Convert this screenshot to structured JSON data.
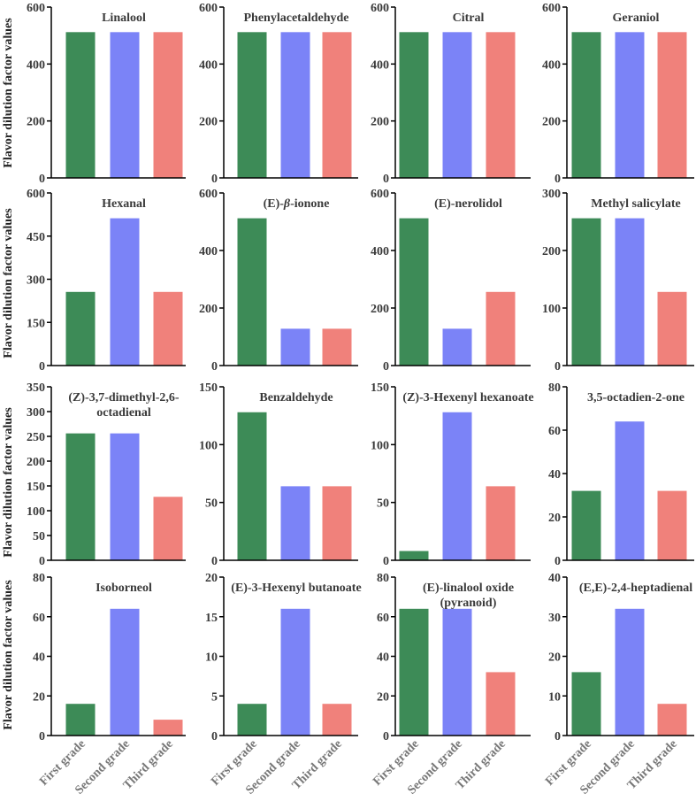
{
  "figure": {
    "ylabel": "Flavor dilution factor values",
    "categories": [
      "First grade",
      "Second grade",
      "Third grade"
    ],
    "colors": [
      "#3d8b57",
      "#7b83f7",
      "#f0817b"
    ]
  },
  "chart_data": [
    {
      "type": "bar",
      "title": "Linalool",
      "title_lines": [
        "Linalool"
      ],
      "categories": [
        "First grade",
        "Second grade",
        "Third grade"
      ],
      "values": [
        512,
        512,
        512
      ],
      "ylim": [
        0,
        600
      ],
      "yticks": [
        0,
        200,
        400,
        600
      ]
    },
    {
      "type": "bar",
      "title": "Phenylacetaldehyde",
      "title_lines": [
        "Phenylacetaldehyde"
      ],
      "categories": [
        "First grade",
        "Second grade",
        "Third grade"
      ],
      "values": [
        512,
        512,
        512
      ],
      "ylim": [
        0,
        600
      ],
      "yticks": [
        0,
        200,
        400,
        600
      ]
    },
    {
      "type": "bar",
      "title": "Citral",
      "title_lines": [
        "Citral"
      ],
      "categories": [
        "First grade",
        "Second grade",
        "Third grade"
      ],
      "values": [
        512,
        512,
        512
      ],
      "ylim": [
        0,
        600
      ],
      "yticks": [
        0,
        200,
        400,
        600
      ]
    },
    {
      "type": "bar",
      "title": "Geraniol",
      "title_lines": [
        "Geraniol"
      ],
      "categories": [
        "First grade",
        "Second grade",
        "Third grade"
      ],
      "values": [
        512,
        512,
        512
      ],
      "ylim": [
        0,
        600
      ],
      "yticks": [
        0,
        200,
        400,
        600
      ]
    },
    {
      "type": "bar",
      "title": "Hexanal",
      "title_lines": [
        "Hexanal"
      ],
      "categories": [
        "First grade",
        "Second grade",
        "Third grade"
      ],
      "values": [
        256,
        512,
        256
      ],
      "ylim": [
        0,
        600
      ],
      "yticks": [
        0,
        150,
        300,
        450,
        600
      ]
    },
    {
      "type": "bar",
      "title": "(E)-β-ionone",
      "title_lines": [
        "(E)-β-ionone"
      ],
      "categories": [
        "First grade",
        "Second grade",
        "Third grade"
      ],
      "values": [
        512,
        128,
        128
      ],
      "ylim": [
        0,
        600
      ],
      "yticks": [
        0,
        200,
        400,
        600
      ]
    },
    {
      "type": "bar",
      "title": "(E)-nerolidol",
      "title_lines": [
        "(E)-nerolidol"
      ],
      "categories": [
        "First grade",
        "Second grade",
        "Third grade"
      ],
      "values": [
        512,
        128,
        256
      ],
      "ylim": [
        0,
        600
      ],
      "yticks": [
        0,
        200,
        400,
        600
      ]
    },
    {
      "type": "bar",
      "title": "Methyl salicylate",
      "title_lines": [
        "Methyl salicylate"
      ],
      "categories": [
        "First grade",
        "Second grade",
        "Third grade"
      ],
      "values": [
        256,
        256,
        128
      ],
      "ylim": [
        0,
        300
      ],
      "yticks": [
        0,
        100,
        200,
        300
      ]
    },
    {
      "type": "bar",
      "title": "(Z)-3,7-dimethyl-2,6-octadienal",
      "title_lines": [
        "(Z)-3,7-dimethyl-2,6-",
        "octadienal"
      ],
      "categories": [
        "First grade",
        "Second grade",
        "Third grade"
      ],
      "values": [
        256,
        256,
        128
      ],
      "ylim": [
        0,
        350
      ],
      "yticks": [
        0,
        50,
        100,
        150,
        200,
        250,
        300,
        350
      ]
    },
    {
      "type": "bar",
      "title": "Benzaldehyde",
      "title_lines": [
        "Benzaldehyde"
      ],
      "categories": [
        "First grade",
        "Second grade",
        "Third grade"
      ],
      "values": [
        128,
        64,
        64
      ],
      "ylim": [
        0,
        150
      ],
      "yticks": [
        0,
        50,
        100,
        150
      ]
    },
    {
      "type": "bar",
      "title": "(Z)-3-Hexenyl hexanoate",
      "title_lines": [
        "(Z)-3-Hexenyl hexanoate"
      ],
      "categories": [
        "First grade",
        "Second grade",
        "Third grade"
      ],
      "values": [
        8,
        128,
        64
      ],
      "ylim": [
        0,
        150
      ],
      "yticks": [
        0,
        50,
        100,
        150
      ]
    },
    {
      "type": "bar",
      "title": "3,5-octadien-2-one",
      "title_lines": [
        "3,5-octadien-2-one"
      ],
      "categories": [
        "First grade",
        "Second grade",
        "Third grade"
      ],
      "values": [
        32,
        64,
        32
      ],
      "ylim": [
        0,
        80
      ],
      "yticks": [
        0,
        20,
        40,
        60,
        80
      ]
    },
    {
      "type": "bar",
      "title": "Isoborneol",
      "title_lines": [
        "Isoborneol"
      ],
      "categories": [
        "First grade",
        "Second grade",
        "Third grade"
      ],
      "values": [
        16,
        64,
        8
      ],
      "ylim": [
        0,
        80
      ],
      "yticks": [
        0,
        20,
        40,
        60,
        80
      ]
    },
    {
      "type": "bar",
      "title": "(E)-3-Hexenyl butanoate",
      "title_lines": [
        "(E)-3-Hexenyl butanoate"
      ],
      "categories": [
        "First grade",
        "Second grade",
        "Third grade"
      ],
      "values": [
        4,
        16,
        4
      ],
      "ylim": [
        0,
        20
      ],
      "yticks": [
        0,
        5,
        10,
        15,
        20
      ]
    },
    {
      "type": "bar",
      "title": "(E)-linalool oxide (pyranoid)",
      "title_lines": [
        "(E)-linalool oxide",
        "(pyranoid)"
      ],
      "categories": [
        "First grade",
        "Second grade",
        "Third grade"
      ],
      "values": [
        64,
        64,
        32
      ],
      "ylim": [
        0,
        80
      ],
      "yticks": [
        0,
        20,
        40,
        60,
        80
      ]
    },
    {
      "type": "bar",
      "title": "(E,E)-2,4-heptadienal",
      "title_lines": [
        "(E,E)-2,4-heptadienal"
      ],
      "categories": [
        "First grade",
        "Second grade",
        "Third grade"
      ],
      "values": [
        16,
        32,
        8
      ],
      "ylim": [
        0,
        40
      ],
      "yticks": [
        0,
        10,
        20,
        30,
        40
      ]
    }
  ]
}
